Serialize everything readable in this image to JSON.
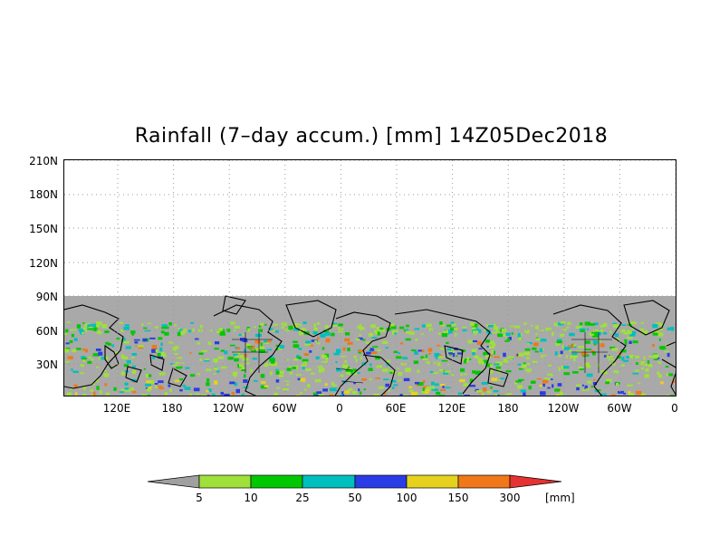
{
  "title": "Rainfall (7–day accum.) [mm] 14Z05Dec2018",
  "map": {
    "y_ticks": [
      "210N",
      "180N",
      "150N",
      "120N",
      "90N",
      "60N",
      "30N"
    ],
    "x_ticks": [
      "120E",
      "180",
      "120W",
      "60W",
      "0",
      "60E",
      "120E",
      "180",
      "120W",
      "60W",
      "0"
    ],
    "no_data_color": "#a9a9a9",
    "coastline_color": "#000000",
    "background": "#ffffff"
  },
  "colorbar": {
    "labels": [
      "5",
      "10",
      "25",
      "50",
      "100",
      "150",
      "300"
    ],
    "unit": "[mm]",
    "colors": [
      "#a0a0a0",
      "#9fe03a",
      "#00c800",
      "#00bfbf",
      "#2a3ce6",
      "#e6d21e",
      "#f07818",
      "#e63232"
    ]
  }
}
